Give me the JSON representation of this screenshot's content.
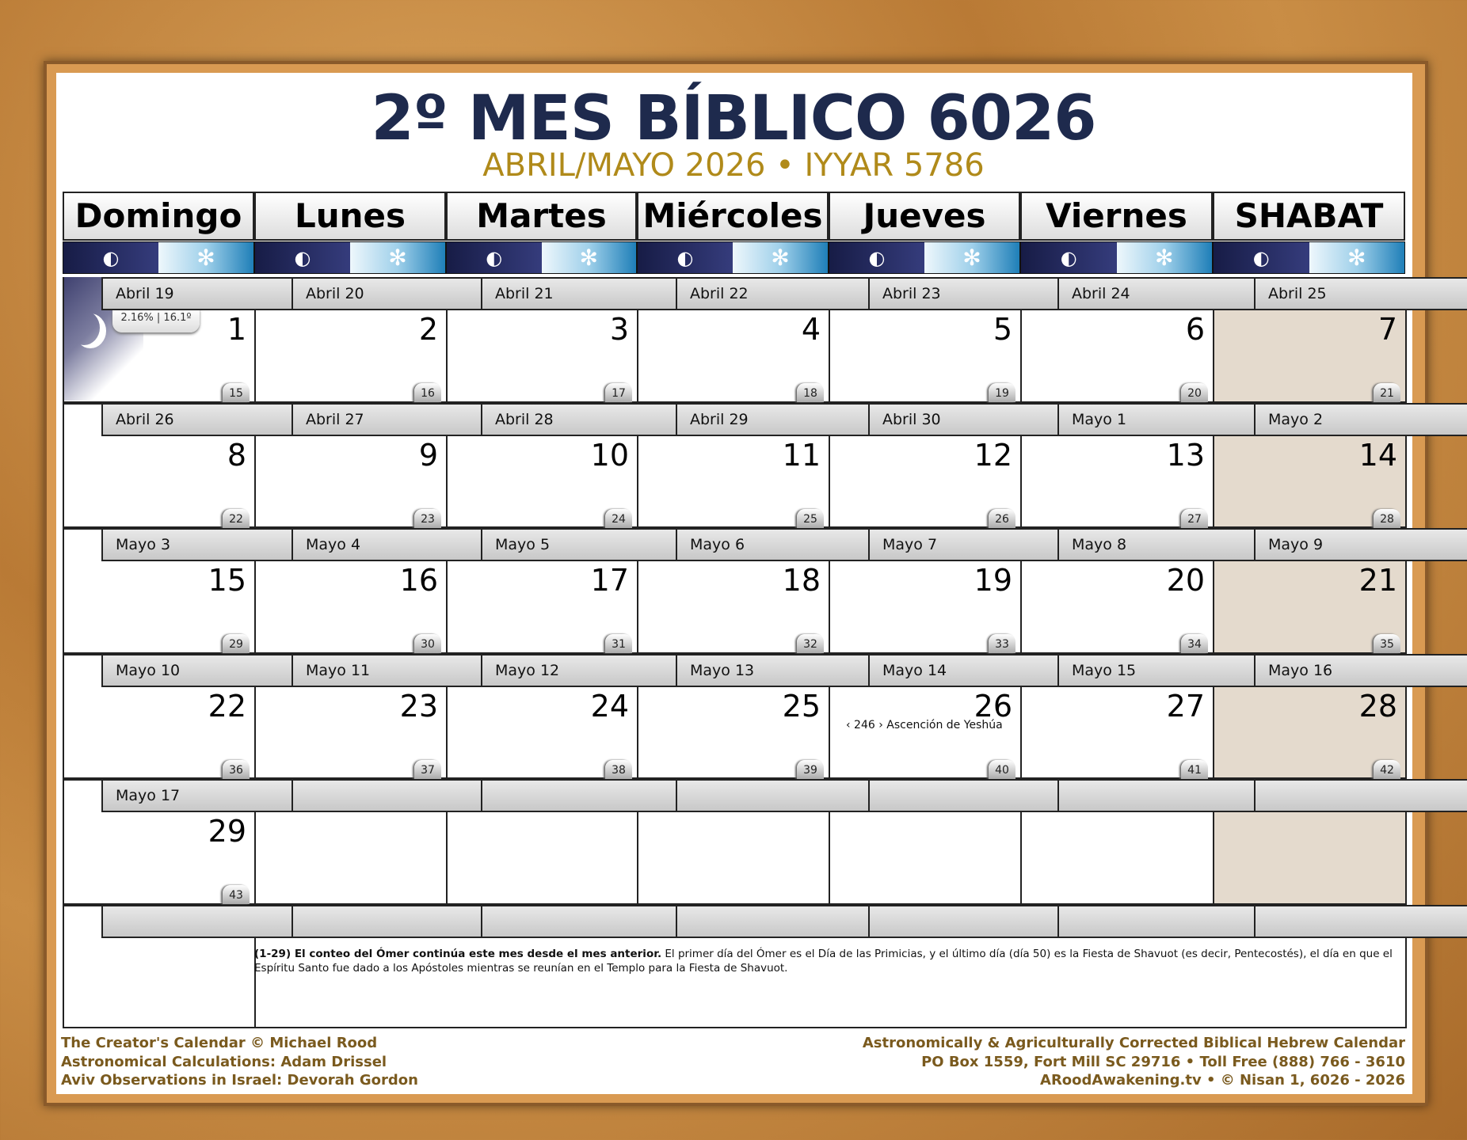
{
  "title": "2º MES BÍBLICO 6026",
  "subtitle": "ABRIL/MAYO 2026 • IYYAR 5786",
  "days": [
    "Domingo",
    "Lunes",
    "Martes",
    "Miércoles",
    "Jueves",
    "Viernes",
    "SHABAT"
  ],
  "icons": {
    "night": "moon-night-icon",
    "day": "snowflake-sun-icon"
  },
  "moon_info": "2.16% | 16.1º",
  "colors": {
    "navy": "#1e2a4d",
    "gold": "#b08a1a",
    "sabbath": "#e4dacd"
  },
  "weeks": [
    [
      {
        "greg": "Abril 19",
        "day": "1",
        "omer": "15"
      },
      {
        "greg": "Abril 20",
        "day": "2",
        "omer": "16"
      },
      {
        "greg": "Abril 21",
        "day": "3",
        "omer": "17"
      },
      {
        "greg": "Abril 22",
        "day": "4",
        "omer": "18"
      },
      {
        "greg": "Abril 23",
        "day": "5",
        "omer": "19"
      },
      {
        "greg": "Abril 24",
        "day": "6",
        "omer": "20"
      },
      {
        "greg": "Abril 25",
        "day": "7",
        "omer": "21"
      }
    ],
    [
      {
        "greg": "Abril 26",
        "day": "8",
        "omer": "22"
      },
      {
        "greg": "Abril 27",
        "day": "9",
        "omer": "23"
      },
      {
        "greg": "Abril 28",
        "day": "10",
        "omer": "24"
      },
      {
        "greg": "Abril 29",
        "day": "11",
        "omer": "25"
      },
      {
        "greg": "Abril 30",
        "day": "12",
        "omer": "26"
      },
      {
        "greg": "Mayo 1",
        "day": "13",
        "omer": "27"
      },
      {
        "greg": "Mayo 2",
        "day": "14",
        "omer": "28"
      }
    ],
    [
      {
        "greg": "Mayo 3",
        "day": "15",
        "omer": "29"
      },
      {
        "greg": "Mayo 4",
        "day": "16",
        "omer": "30"
      },
      {
        "greg": "Mayo 5",
        "day": "17",
        "omer": "31"
      },
      {
        "greg": "Mayo 6",
        "day": "18",
        "omer": "32"
      },
      {
        "greg": "Mayo 7",
        "day": "19",
        "omer": "33"
      },
      {
        "greg": "Mayo 8",
        "day": "20",
        "omer": "34"
      },
      {
        "greg": "Mayo 9",
        "day": "21",
        "omer": "35"
      }
    ],
    [
      {
        "greg": "Mayo 10",
        "day": "22",
        "omer": "36"
      },
      {
        "greg": "Mayo 11",
        "day": "23",
        "omer": "37"
      },
      {
        "greg": "Mayo 12",
        "day": "24",
        "omer": "38"
      },
      {
        "greg": "Mayo 13",
        "day": "25",
        "omer": "39"
      },
      {
        "greg": "Mayo 14",
        "day": "26",
        "omer": "40",
        "note": "‹ 246 › Ascención de Yeshúa"
      },
      {
        "greg": "Mayo 15",
        "day": "27",
        "omer": "41"
      },
      {
        "greg": "Mayo 16",
        "day": "28",
        "omer": "42"
      }
    ],
    [
      {
        "greg": "Mayo 17",
        "day": "29",
        "omer": "43"
      },
      {},
      {},
      {},
      {},
      {},
      {}
    ]
  ],
  "footnote": {
    "bold": "(1-29) El conteo del Ómer continúa este mes desde el mes anterior.",
    "text": " El primer día del Ómer es el Día de las Primicias, y el último día (día 50) es la Fiesta de Shavuot (es decir, Pentecostés), el día en que el Espíritu Santo fue dado a los Apóstoles mientras se reunían en el Templo para la Fiesta de Shavuot."
  },
  "footer_left": [
    "The Creator's Calendar © Michael Rood",
    "Astronomical Calculations: Adam Drissel",
    "Aviv Observations in Israel: Devorah Gordon"
  ],
  "footer_right": [
    "Astronomically & Agriculturally Corrected Biblical Hebrew Calendar",
    "PO Box 1559, Fort Mill SC 29716 • Toll Free (888) 766 - 3610",
    "ARoodAwakening.tv • © Nisan 1, 6026 - 2026"
  ]
}
